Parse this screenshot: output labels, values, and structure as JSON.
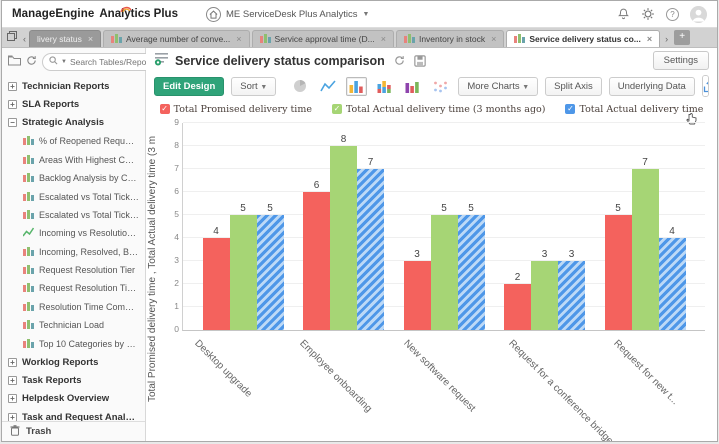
{
  "topbar": {
    "logo_primary": "ManageEngine",
    "logo_secondary": "Analytics Plus",
    "workspace_label": "ME ServiceDesk Plus Analytics",
    "help_glyph": "?"
  },
  "tabbar": {
    "tabs": [
      {
        "label": "livery status",
        "active": false,
        "partial": true
      },
      {
        "label": "Average number of conve...",
        "active": false,
        "partial": false
      },
      {
        "label": "Service approval time (D...",
        "active": false,
        "partial": false
      },
      {
        "label": "Inventory in stock",
        "active": false,
        "partial": false
      },
      {
        "label": "Service delivery status co...",
        "active": true,
        "partial": false
      }
    ],
    "new_tab_label": "+"
  },
  "sidebar": {
    "search_placeholder": "Search Tables/Reports",
    "items": [
      {
        "type": "section",
        "expanded": false,
        "label": "Technician Reports"
      },
      {
        "type": "section",
        "expanded": false,
        "label": "SLA Reports"
      },
      {
        "type": "section",
        "expanded": true,
        "label": "Strategic Analysis"
      },
      {
        "type": "report",
        "icon": "bar-chart",
        "label": "% of Reopened Requests"
      },
      {
        "type": "report",
        "icon": "bar-chart",
        "label": "Areas With Highest Custome..."
      },
      {
        "type": "report",
        "icon": "bar-chart",
        "label": "Backlog Analysis by Customer"
      },
      {
        "type": "report",
        "icon": "bar-chart",
        "label": "Escalated vs Total Tickets by..."
      },
      {
        "type": "report",
        "icon": "bar-chart",
        "label": "Escalated vs Total Tickets by..."
      },
      {
        "type": "report",
        "icon": "line-chart",
        "label": "Incoming vs Resolution and ..."
      },
      {
        "type": "report",
        "icon": "bar-chart",
        "label": "Incoming, Resolved, Backlog..."
      },
      {
        "type": "report",
        "icon": "bar-chart",
        "label": "Request Resolution Tier"
      },
      {
        "type": "report",
        "icon": "bar-chart",
        "label": "Request Resolution Time by ..."
      },
      {
        "type": "report",
        "icon": "bar-chart",
        "label": "Resolution Time Comparison"
      },
      {
        "type": "report",
        "icon": "bar-chart",
        "label": "Technician Load"
      },
      {
        "type": "report",
        "icon": "bar-chart",
        "label": "Top 10 Categories by Highes..."
      },
      {
        "type": "section",
        "expanded": false,
        "label": "Worklog Reports"
      },
      {
        "type": "section",
        "expanded": false,
        "label": "Task Reports"
      },
      {
        "type": "section",
        "expanded": false,
        "label": "Helpdesk Overview"
      },
      {
        "type": "section",
        "expanded": false,
        "label": "Task and Request Analysis"
      },
      {
        "type": "section",
        "expanded": false,
        "label": "Frequently Asked Request R..."
      }
    ],
    "trash_label": "Trash"
  },
  "report": {
    "title": "Service delivery status comparison",
    "settings_label": "Settings",
    "toolbar": {
      "edit_design": "Edit Design",
      "sort": "Sort",
      "more_charts": "More Charts",
      "split_axis": "Split Axis",
      "underlying_data": "Underlying Data"
    }
  },
  "chart_data": {
    "type": "bar",
    "title": "Service delivery status comparison",
    "categories": [
      "Desktop upgrade",
      "Employee onboarding",
      "New software request",
      "Request for a conference bridge",
      "Request for new t..."
    ],
    "series": [
      {
        "name": "Total Promised delivery time",
        "color": "#f4625d",
        "pattern": "solid",
        "values": [
          4,
          6,
          3,
          2,
          5
        ]
      },
      {
        "name": "Total Actual delivery time (3 months ago)",
        "color": "#a6d575",
        "pattern": "solid",
        "values": [
          5,
          8,
          5,
          3,
          7
        ]
      },
      {
        "name": "Total Actual delivery time",
        "color": "#4e97e8",
        "pattern": "diagonal-stripes",
        "stripe_color": "#bcd9f7",
        "values": [
          5,
          7,
          5,
          3,
          4
        ]
      }
    ],
    "ylabel": "Total Promised delivery time , Total Actual delivery time (3 m",
    "xlabel": "",
    "ylim": [
      0,
      9
    ],
    "ytick_step": 1,
    "grid": true,
    "legend_position": "top"
  }
}
